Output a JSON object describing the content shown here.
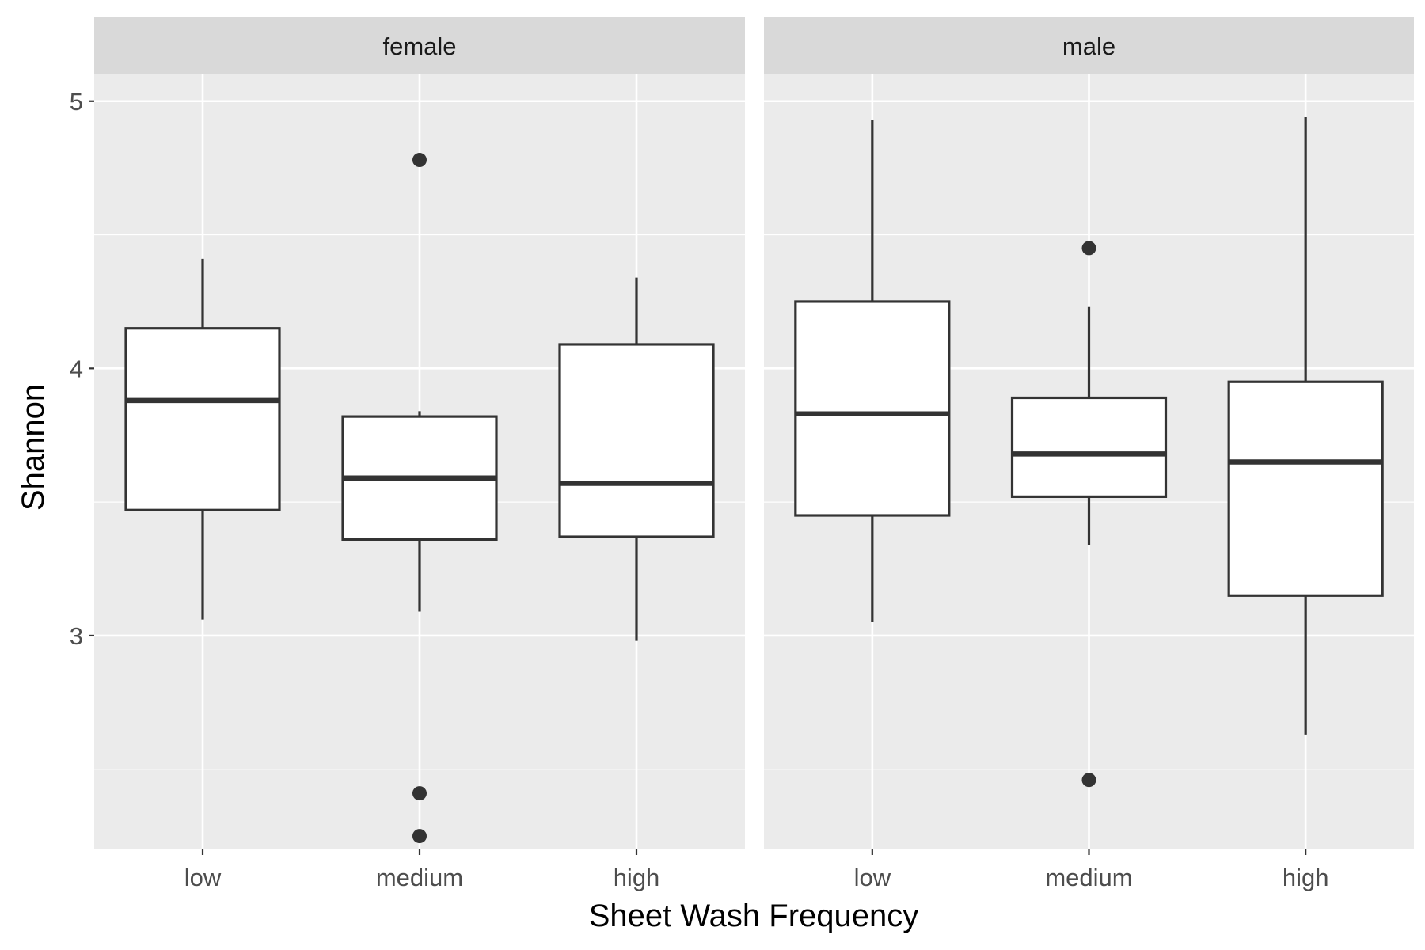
{
  "chart_data": {
    "type": "boxplot",
    "xlabel": "Sheet Wash Frequency",
    "ylabel": "Shannon",
    "categories": [
      "low",
      "medium",
      "high"
    ],
    "ylim": [
      2.2,
      5.1
    ],
    "yticks": [
      3,
      4,
      5
    ],
    "yticks_minor": [
      2.5,
      3.5,
      4.5
    ],
    "grid": true,
    "panels": [
      {
        "facet": "female",
        "boxes": [
          {
            "category": "low",
            "whisker_low": 3.06,
            "q1": 3.47,
            "median": 3.88,
            "q3": 4.15,
            "whisker_high": 4.41,
            "outliers": []
          },
          {
            "category": "medium",
            "whisker_low": 3.09,
            "q1": 3.36,
            "median": 3.59,
            "q3": 3.82,
            "whisker_high": 3.84,
            "outliers": [
              4.78,
              2.41,
              2.25
            ]
          },
          {
            "category": "high",
            "whisker_low": 2.98,
            "q1": 3.37,
            "median": 3.57,
            "q3": 4.09,
            "whisker_high": 4.34,
            "outliers": []
          }
        ]
      },
      {
        "facet": "male",
        "boxes": [
          {
            "category": "low",
            "whisker_low": 3.05,
            "q1": 3.45,
            "median": 3.83,
            "q3": 4.25,
            "whisker_high": 4.93,
            "outliers": []
          },
          {
            "category": "medium",
            "whisker_low": 3.34,
            "q1": 3.52,
            "median": 3.68,
            "q3": 3.89,
            "whisker_high": 4.23,
            "outliers": [
              4.45,
              2.46
            ]
          },
          {
            "category": "high",
            "whisker_low": 2.63,
            "q1": 3.15,
            "median": 3.65,
            "q3": 3.95,
            "whisker_high": 4.94,
            "outliers": []
          }
        ]
      }
    ]
  }
}
